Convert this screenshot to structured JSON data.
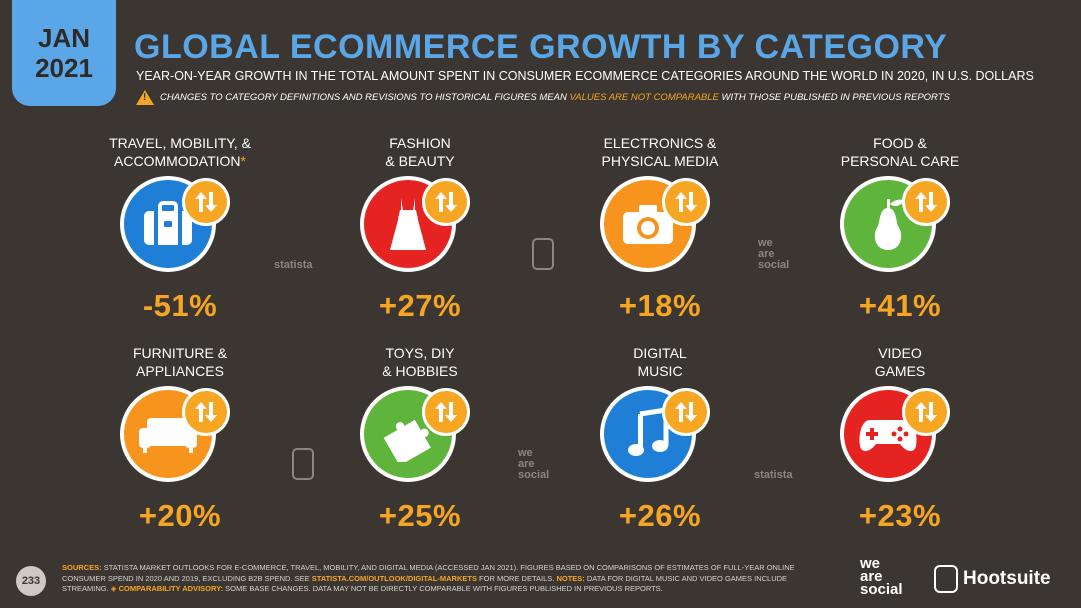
{
  "header": {
    "month": "JAN",
    "year": "2021",
    "title": "GLOBAL ECOMMERCE GROWTH BY CATEGORY",
    "subtitle": "YEAR-ON-YEAR GROWTH IN THE TOTAL AMOUNT SPENT IN CONSUMER ECOMMERCE CATEGORIES AROUND THE WORLD IN 2020, IN U.S. DOLLARS",
    "caveat_pre": "CHANGES TO CATEGORY DEFINITIONS AND REVISIONS TO HISTORICAL FIGURES MEAN",
    "caveat_highlight": "VALUES ARE NOT COMPARABLE",
    "caveat_post": "WITH THOSE PUBLISHED IN PREVIOUS REPORTS"
  },
  "categories": [
    {
      "label": "TRAVEL, MOBILITY, &\nACCOMMODATION",
      "asterisk": "*",
      "value": "-51%",
      "color": "#1f7fd6",
      "icon": "suitcase-icon"
    },
    {
      "label": "FASHION\n& BEAUTY",
      "asterisk": "",
      "value": "+27%",
      "color": "#e52421",
      "icon": "dress-icon"
    },
    {
      "label": "ELECTRONICS &\nPHYSICAL MEDIA",
      "asterisk": "",
      "value": "+18%",
      "color": "#f7941d",
      "icon": "camera-icon"
    },
    {
      "label": "FOOD &\nPERSONAL CARE",
      "asterisk": "",
      "value": "+41%",
      "color": "#5fb53c",
      "icon": "pear-icon"
    },
    {
      "label": "FURNITURE &\nAPPLIANCES",
      "asterisk": "",
      "value": "+20%",
      "color": "#f7941d",
      "icon": "sofa-icon"
    },
    {
      "label": "TOYS, DIY\n& HOBBIES",
      "asterisk": "",
      "value": "+25%",
      "color": "#5fb53c",
      "icon": "puzzle-icon"
    },
    {
      "label": "DIGITAL\nMUSIC",
      "asterisk": "",
      "value": "+26%",
      "color": "#1f7fd6",
      "icon": "music-note-icon"
    },
    {
      "label": "VIDEO\nGAMES",
      "asterisk": "",
      "value": "+23%",
      "color": "#e52421",
      "icon": "gamepad-icon"
    }
  ],
  "watermarks": {
    "statista": "statista",
    "we_are_social_1": "we",
    "we_are_social_2": "are",
    "we_are_social_3": "social"
  },
  "footer": {
    "page_number": "233",
    "sources_label": "SOURCES:",
    "sources_text_1": "STATISTA MARKET OUTLOOKS FOR E-COMMERCE, TRAVEL, MOBILITY, AND DIGITAL MEDIA (ACCESSED JAN 2021). FIGURES BASED ON COMPARISONS OF ESTIMATES OF FULL-YEAR ONLINE CONSUMER SPEND IN 2020 AND 2019, EXCLUDING B2B SPEND. SEE",
    "sources_link": "STATISTA.COM/OUTLOOK/DIGITAL-MARKETS",
    "sources_text_2": "FOR MORE DETAILS.",
    "notes_label": "NOTES:",
    "notes_text": "DATA FOR DIGITAL MUSIC AND VIDEO GAMES INCLUDE STREAMING.",
    "advisory_label": "◈ COMPARABILITY ADVISORY:",
    "advisory_text": "SOME BASE CHANGES. DATA MAY NOT BE DIRECTLY COMPARABLE WITH FIGURES PUBLISHED IN PREVIOUS REPORTS.",
    "logo_we": "we",
    "logo_are": "are",
    "logo_social": "social",
    "logo_hootsuite": "Hootsuite"
  },
  "colors": {
    "background": "#3b3632",
    "accent_blue": "#5aa6e6",
    "accent_orange": "#f6a623"
  }
}
